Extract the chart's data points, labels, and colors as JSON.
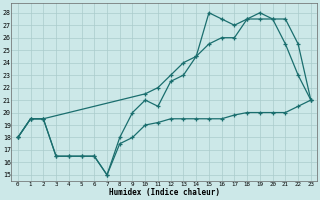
{
  "title": "",
  "xlabel": "Humidex (Indice chaleur)",
  "bg_color": "#cce8e8",
  "grid_color": "#aacccc",
  "line_color": "#1a6e6e",
  "xlim": [
    -0.5,
    23.5
  ],
  "ylim": [
    14.5,
    28.8
  ],
  "xticks": [
    0,
    1,
    2,
    3,
    4,
    5,
    6,
    7,
    8,
    9,
    10,
    11,
    12,
    13,
    14,
    15,
    16,
    17,
    18,
    19,
    20,
    21,
    22,
    23
  ],
  "yticks": [
    15,
    16,
    17,
    18,
    19,
    20,
    21,
    22,
    23,
    24,
    25,
    26,
    27,
    28
  ],
  "line1_x": [
    0,
    1,
    2,
    3,
    4,
    5,
    6,
    7,
    8,
    9,
    10,
    11,
    12,
    13,
    14,
    15,
    16,
    17,
    18,
    19,
    20,
    21,
    22,
    23
  ],
  "line1_y": [
    18,
    19.5,
    19.5,
    16.5,
    16.5,
    16.5,
    16.5,
    15,
    18,
    20,
    21,
    20.5,
    22.5,
    23,
    24.5,
    25.5,
    26,
    26,
    27.5,
    28,
    27.5,
    25.5,
    23,
    21
  ],
  "line2_x": [
    0,
    1,
    2,
    10,
    11,
    12,
    13,
    14,
    15,
    16,
    17,
    18,
    19,
    20,
    21,
    22,
    23
  ],
  "line2_y": [
    18,
    19.5,
    19.5,
    21.5,
    22,
    23,
    24,
    24.5,
    28,
    27.5,
    27,
    27.5,
    27.5,
    27.5,
    27.5,
    25.5,
    21
  ],
  "line3_x": [
    0,
    1,
    2,
    3,
    4,
    5,
    6,
    7,
    8,
    9,
    10,
    11,
    12,
    13,
    14,
    15,
    16,
    17,
    18,
    19,
    20,
    21,
    22,
    23
  ],
  "line3_y": [
    18,
    19.5,
    19.5,
    16.5,
    16.5,
    16.5,
    16.5,
    15,
    17.5,
    18,
    19,
    19.2,
    19.5,
    19.5,
    19.5,
    19.5,
    19.5,
    19.8,
    20,
    20,
    20,
    20,
    20.5,
    21
  ]
}
